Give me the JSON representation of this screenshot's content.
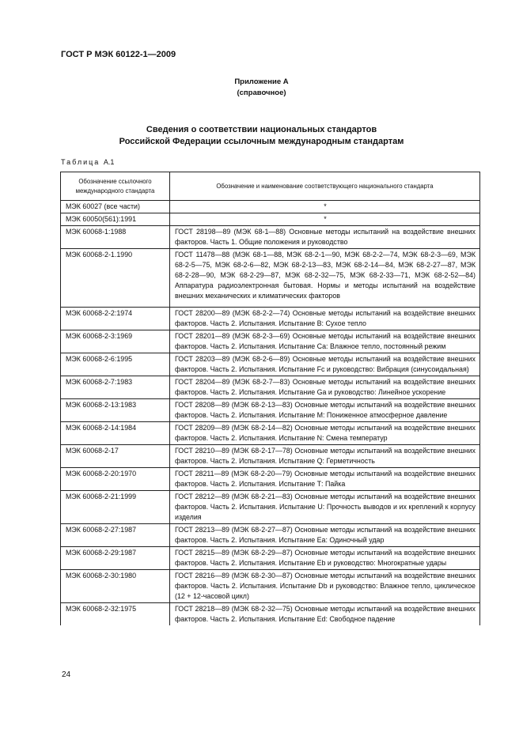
{
  "header": {
    "doc_number": "ГОСТ Р МЭК 60122-1—2009"
  },
  "annex": {
    "title": "Приложение А",
    "type": "(справочное)"
  },
  "section_title": {
    "line1": "Сведения о соответствии национальных стандартов",
    "line2": "Российской Федерации ссылочным международным стандартам"
  },
  "table": {
    "label_spaced": "Таблица",
    "label_number": "А.1",
    "columns": [
      "Обозначение ссылочного международного стандарта",
      "Обозначение и наименование соответствующего национального стандарта"
    ],
    "rows": [
      {
        "intl": "МЭК 60027 (все части)",
        "national": "*"
      },
      {
        "intl": "МЭК 60050(561):1991",
        "national": "*"
      },
      {
        "intl": "МЭК 60068-1:1988",
        "national": "ГОСТ 28198—89 (МЭК 68-1—88) Основные методы испытаний на воздействие внешних факторов. Часть 1. Общие положения и руководство"
      },
      {
        "intl": "МЭК 60068-2-1.1990",
        "national": "ГОСТ 11478—88 (МЭК 68-1—88, МЭК 68-2-1—90, МЭК 68-2-2—74, МЭК 68-2-3—69, МЭК 68-2-5—75, МЭК 68-2-6—82, МЭК 68-2-13—83, МЭК 68-2-14—84, МЭК 68-2-27—87, МЭК 68-2-28—90, МЭК 68-2-29—87, МЭК 68-2-32—75, МЭК 68-2-33—71, МЭК 68-2-52—84) Аппаратура радиоэлектронная бытовая. Нормы и методы испытаний на воздействие внешних механических и климатических факторов"
      },
      {
        "intl": "МЭК 60068-2-2:1974",
        "national": "ГОСТ 28200—89 (МЭК 68-2-2—74) Основные методы испытаний на воздействие внешних факторов. Часть 2. Испытания. Испытание В: Сухое тепло"
      },
      {
        "intl": "МЭК 60068-2-3:1969",
        "national": "ГОСТ 28201—89 (МЭК 68-2-3—69) Основные методы испытаний на воздействие внешних факторов. Часть 2. Испытания. Испытание Са: Влажное тепло, постоянный режим"
      },
      {
        "intl": "МЭК 60068-2-6:1995",
        "national": "ГОСТ 28203—89 (МЭК 68-2-6—89) Основные методы испытаний на воздействие внешних факторов. Часть 2. Испытания. Испытание Fc и руководство: Вибрация (синусоидальная)"
      },
      {
        "intl": "МЭК 60068-2-7:1983",
        "national": "ГОСТ 28204—89 (МЭК 68-2-7—83) Основные методы испытаний на воздействие внешних факторов. Часть 2. Испытания. Испытание Ga и руководство: Линейное ускорение"
      },
      {
        "intl": "МЭК 60068-2-13:1983",
        "national": "ГОСТ 28208—89 (МЭК 68-2-13—83) Основные методы испытаний на воздействие внешних факторов. Часть 2. Испытания. Испытание М: Пониженное атмосферное давление"
      },
      {
        "intl": "МЭК 60068-2-14:1984",
        "national": "ГОСТ 28209—89 (МЭК 68-2-14—82) Основные методы испытаний на воздействие внешних факторов. Часть 2. Испытания. Испытание N: Смена температур"
      },
      {
        "intl": "МЭК 60068-2-17",
        "national": "ГОСТ 28210—89 (МЭК 68-2-17—78) Основные методы испытаний на воздействие внешних факторов. Часть 2. Испытания. Испытание Q: Герметичность"
      },
      {
        "intl": "МЭК 60068-2-20:1970",
        "national": "ГОСТ 28211—89 (МЭК 68-2-20—79) Основные методы испытаний на воздействие внешних факторов. Часть 2. Испытания. Испытание Т: Пайка"
      },
      {
        "intl": "МЭК 60068-2-21:1999",
        "national": "ГОСТ 28212—89 (МЭК 68-2-21—83) Основные методы испытаний на воздействие внешних факторов. Часть 2. Испытания. Испытание U: Прочность выводов и их креплений к корпусу изделия"
      },
      {
        "intl": "МЭК 60068-2-27:1987",
        "national": "ГОСТ 28213—89 (МЭК 68-2-27—87) Основные методы испытаний на воздействие внешних факторов. Часть 2. Испытания. Испытание Еа: Одиночный удар"
      },
      {
        "intl": "МЭК 60068-2-29:1987",
        "national": "ГОСТ 28215—89 (МЭК 68-2-29—87) Основные методы испытаний на воздействие внешних факторов. Часть 2. Испытания. Испытание Eb и руководство: Многократные удары"
      },
      {
        "intl": "МЭК 60068-2-30:1980",
        "national": "ГОСТ 28216—89 (МЭК 68-2-30—87) Основные методы испытаний на воздействие внешних факторов. Часть 2. Испытания. Испытание Db и руководство: Влажное тепло, циклическое (12 + 12-часовой цикл)"
      },
      {
        "intl": "МЭК 60068-2-32:1975",
        "national": "ГОСТ 28218—89 (МЭК 68-2-32—75) Основные методы испытаний на воздействие внешних факторов. Часть 2. Испытания. Испытание Ed: Свободное падение"
      }
    ]
  },
  "footer": {
    "page_number": "24"
  }
}
